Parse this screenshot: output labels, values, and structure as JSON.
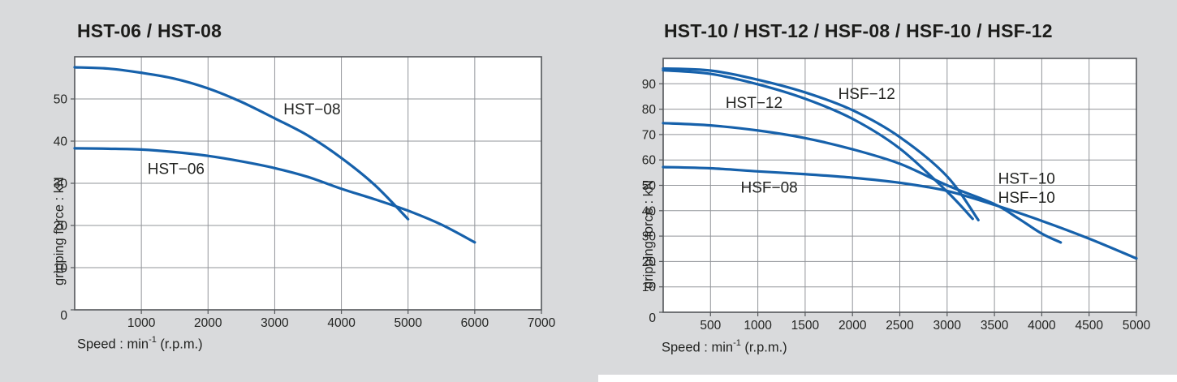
{
  "page": {
    "background": "#d9dadc",
    "colors": {
      "curve": "#1661ab",
      "grid": "#92959a",
      "frame": "#54575a",
      "text": "#232422",
      "plot_bg": "#ffffff",
      "title": "#1d1d1b"
    }
  },
  "chart_data": [
    {
      "type": "line",
      "title": "HST-06 / HST-08",
      "xlabel": "Speed : min-1 (r.p.m.)",
      "xlabel_parts": {
        "base": "Speed : min",
        "sup": "-1",
        "rest": " (r.p.m.)"
      },
      "ylabel": "gripping force : kN",
      "x_axis": {
        "min": 0,
        "max": 7000,
        "grid_step": 1000,
        "tick_labels": [
          1000,
          2000,
          3000,
          4000,
          5000,
          6000,
          7000
        ]
      },
      "y_axis": {
        "min": 0,
        "max": 60,
        "grid_step": 10,
        "tick_labels": [
          0,
          10,
          20,
          30,
          40,
          50
        ]
      },
      "grid": true,
      "legend": "in-plot text annotations",
      "series": [
        {
          "name": "HST-08",
          "points": [
            [
              0,
              57.5
            ],
            [
              500,
              57.2
            ],
            [
              1000,
              56.2
            ],
            [
              1500,
              54.8
            ],
            [
              2000,
              52.5
            ],
            [
              2500,
              49.3
            ],
            [
              3000,
              45.4
            ],
            [
              3500,
              41.3
            ],
            [
              4000,
              36.0
            ],
            [
              4500,
              29.6
            ],
            [
              5000,
              21.5
            ]
          ]
        },
        {
          "name": "HST-06",
          "points": [
            [
              0,
              38.3
            ],
            [
              500,
              38.2
            ],
            [
              1000,
              38.0
            ],
            [
              1500,
              37.4
            ],
            [
              2000,
              36.5
            ],
            [
              2500,
              35.2
            ],
            [
              3000,
              33.6
            ],
            [
              3500,
              31.5
            ],
            [
              4000,
              28.7
            ],
            [
              4500,
              26.2
            ],
            [
              5000,
              23.5
            ],
            [
              5500,
              20.2
            ],
            [
              6000,
              16.0
            ]
          ]
        }
      ],
      "annotations": [
        {
          "text": "HST−08",
          "x": 3560,
          "y": 47.5
        },
        {
          "text": "HST−06",
          "x": 1520,
          "y": 33.4
        }
      ]
    },
    {
      "type": "line",
      "title": "HST-10 / HST-12 / HSF-08 / HSF-10 / HSF-12",
      "xlabel": "Speed : min-1 (r.p.m.)",
      "xlabel_parts": {
        "base": "Speed : min",
        "sup": "-1",
        "rest": " (r.p.m.)"
      },
      "ylabel": "gripping force : kN",
      "x_axis": {
        "min": 0,
        "max": 5000,
        "grid_step": 500,
        "tick_labels": [
          500,
          1000,
          1500,
          2000,
          2500,
          3000,
          3500,
          4000,
          4500,
          5000
        ]
      },
      "y_axis": {
        "min": 0,
        "max": 100,
        "grid_step": 10,
        "tick_labels": [
          0,
          10,
          20,
          30,
          40,
          50,
          60,
          70,
          80,
          90
        ]
      },
      "grid": true,
      "legend": "in-plot text annotations",
      "series": [
        {
          "name": "HSF-12",
          "points": [
            [
              0,
              96.0
            ],
            [
              500,
              95.2
            ],
            [
              1000,
              91.6
            ],
            [
              1500,
              86.6
            ],
            [
              2000,
              79.6
            ],
            [
              2500,
              69.0
            ],
            [
              3000,
              53.5
            ],
            [
              3330,
              36.3
            ]
          ]
        },
        {
          "name": "HST-12",
          "points": [
            [
              0,
              95.3
            ],
            [
              500,
              93.9
            ],
            [
              1000,
              89.8
            ],
            [
              1500,
              84.1
            ],
            [
              2000,
              76.2
            ],
            [
              2500,
              64.5
            ],
            [
              3000,
              47.5
            ],
            [
              3270,
              36.8
            ]
          ]
        },
        {
          "name": "HST-10 / HSF-10",
          "points": [
            [
              0,
              74.5
            ],
            [
              500,
              73.6
            ],
            [
              1000,
              71.6
            ],
            [
              1500,
              68.6
            ],
            [
              2000,
              64.2
            ],
            [
              2500,
              58.5
            ],
            [
              3000,
              50.0
            ],
            [
              3500,
              42.6
            ],
            [
              3750,
              37.0
            ],
            [
              4000,
              31.0
            ],
            [
              4200,
              27.5
            ]
          ]
        },
        {
          "name": "HSF-08",
          "points": [
            [
              0,
              57.2
            ],
            [
              500,
              56.7
            ],
            [
              1000,
              55.5
            ],
            [
              1500,
              54.4
            ],
            [
              2000,
              53.0
            ],
            [
              2500,
              51.0
            ],
            [
              3000,
              47.8
            ],
            [
              3500,
              42.3
            ],
            [
              4000,
              36.0
            ],
            [
              4500,
              29.0
            ],
            [
              5000,
              21.2
            ]
          ]
        }
      ],
      "annotations": [
        {
          "text": "HST−12",
          "x": 960,
          "y": 82.5
        },
        {
          "text": "HSF−12",
          "x": 2150,
          "y": 86.0
        },
        {
          "text": "HSF−08",
          "x": 1120,
          "y": 49.0
        },
        {
          "text": "HST−10",
          "x": 3840,
          "y": 52.5
        },
        {
          "text": "HSF−10",
          "x": 3840,
          "y": 45.0
        }
      ]
    }
  ]
}
